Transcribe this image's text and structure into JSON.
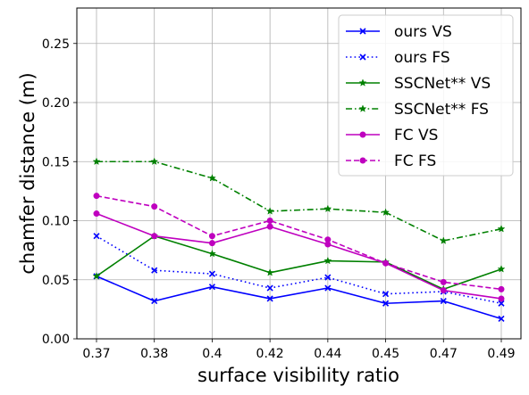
{
  "chart_data": {
    "type": "line",
    "title": "",
    "xlabel": "surface visibility ratio",
    "ylabel": "chamfer distance (m)",
    "categories": [
      "0.37",
      "0.38",
      "0.4",
      "0.42",
      "0.44",
      "0.45",
      "0.47",
      "0.49"
    ],
    "ylim": [
      0,
      0.28
    ],
    "yticks": [
      "0.00",
      "0.05",
      "0.10",
      "0.15",
      "0.20",
      "0.25"
    ],
    "grid": true,
    "legend_position": "top-right",
    "series": [
      {
        "name": "ours VS",
        "color": "#0000ff",
        "line_style": "solid",
        "marker": "x",
        "values": [
          0.053,
          0.032,
          0.044,
          0.034,
          0.043,
          0.03,
          0.032,
          0.017
        ]
      },
      {
        "name": "ours FS",
        "color": "#0000ff",
        "line_style": "dotted",
        "marker": "x",
        "values": [
          0.087,
          0.058,
          0.055,
          0.043,
          0.052,
          0.038,
          0.04,
          0.03
        ]
      },
      {
        "name": "SSCNet** VS",
        "color": "#008000",
        "line_style": "solid",
        "marker": "star",
        "values": [
          0.053,
          0.087,
          0.072,
          0.056,
          0.066,
          0.065,
          0.042,
          0.059
        ]
      },
      {
        "name": "SSCNet** FS",
        "color": "#008000",
        "line_style": "dashdot",
        "marker": "star",
        "values": [
          0.15,
          0.15,
          0.136,
          0.108,
          0.11,
          0.107,
          0.083,
          0.093
        ]
      },
      {
        "name": "FC VS",
        "color": "#bf00bf",
        "line_style": "solid",
        "marker": "circle",
        "values": [
          0.106,
          0.087,
          0.081,
          0.095,
          0.08,
          0.064,
          0.041,
          0.034
        ]
      },
      {
        "name": "FC FS",
        "color": "#bf00bf",
        "line_style": "dashed",
        "marker": "circle",
        "values": [
          0.121,
          0.112,
          0.087,
          0.1,
          0.084,
          0.064,
          0.048,
          0.042
        ]
      }
    ]
  }
}
